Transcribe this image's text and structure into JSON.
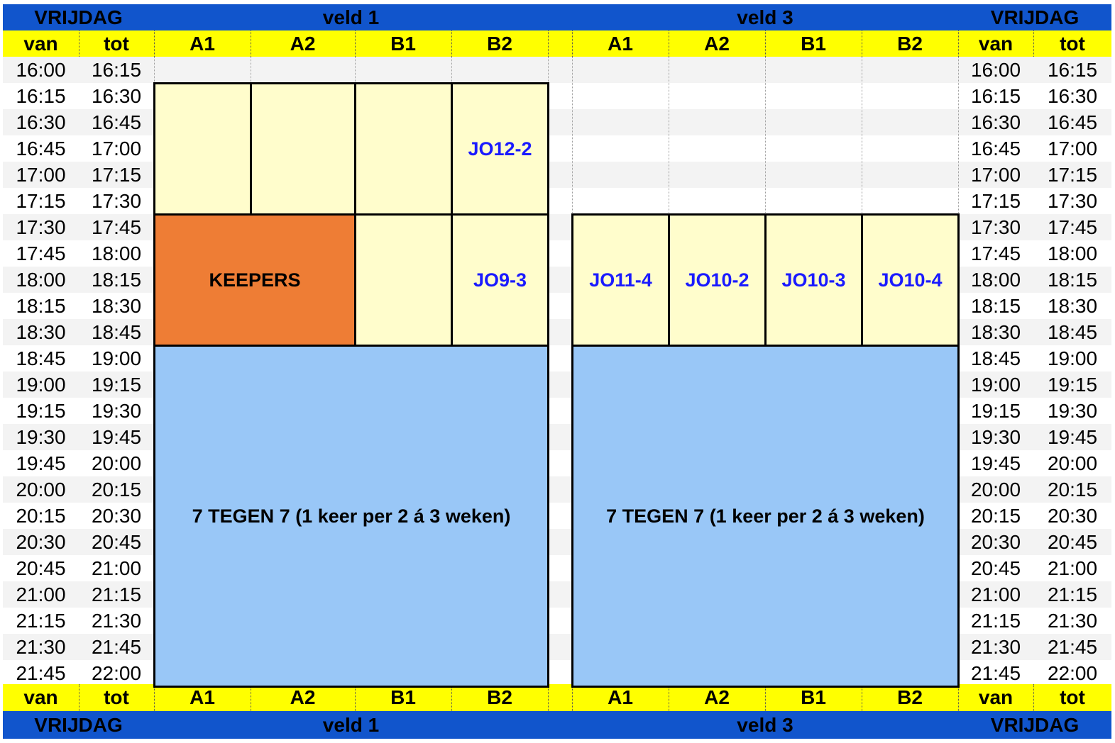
{
  "header": {
    "day": "VRIJDAG",
    "field_left": "veld 1",
    "field_right": "veld 3",
    "van": "van",
    "tot": "tot",
    "cols": [
      "A1",
      "A2",
      "B1",
      "B2"
    ]
  },
  "times": [
    [
      "16:00",
      "16:15"
    ],
    [
      "16:15",
      "16:30"
    ],
    [
      "16:30",
      "16:45"
    ],
    [
      "16:45",
      "17:00"
    ],
    [
      "17:00",
      "17:15"
    ],
    [
      "17:15",
      "17:30"
    ],
    [
      "17:30",
      "17:45"
    ],
    [
      "17:45",
      "18:00"
    ],
    [
      "18:00",
      "18:15"
    ],
    [
      "18:15",
      "18:30"
    ],
    [
      "18:30",
      "18:45"
    ],
    [
      "18:45",
      "19:00"
    ],
    [
      "19:00",
      "19:15"
    ],
    [
      "19:15",
      "19:30"
    ],
    [
      "19:30",
      "19:45"
    ],
    [
      "19:45",
      "20:00"
    ],
    [
      "20:00",
      "20:15"
    ],
    [
      "20:15",
      "20:30"
    ],
    [
      "20:30",
      "20:45"
    ],
    [
      "20:45",
      "21:00"
    ],
    [
      "21:00",
      "21:15"
    ],
    [
      "21:15",
      "21:30"
    ],
    [
      "21:30",
      "21:45"
    ],
    [
      "21:45",
      "22:00"
    ]
  ],
  "blocks": {
    "veld1_jo12": "JO12-2",
    "veld1_keepers": "KEEPERS",
    "veld1_jo9": "JO9-3",
    "veld1_7v7": "7 TEGEN 7 (1 keer per 2 á 3 weken)",
    "veld3_jo11_4": "JO11-4",
    "veld3_jo10_2": "JO10-2",
    "veld3_jo10_3": "JO10-3",
    "veld3_jo10_4": "JO10-4",
    "veld3_7v7": "7 TEGEN 7 (1 keer per 2 á 3 weken)"
  },
  "colors": {
    "header_blue": "#1155cc",
    "header_yellow": "#ffff00",
    "slot_cream": "#fffdcc",
    "keepers_orange": "#ee7d35",
    "match_blue": "#99c7f7",
    "team_text": "#1a1aff"
  }
}
